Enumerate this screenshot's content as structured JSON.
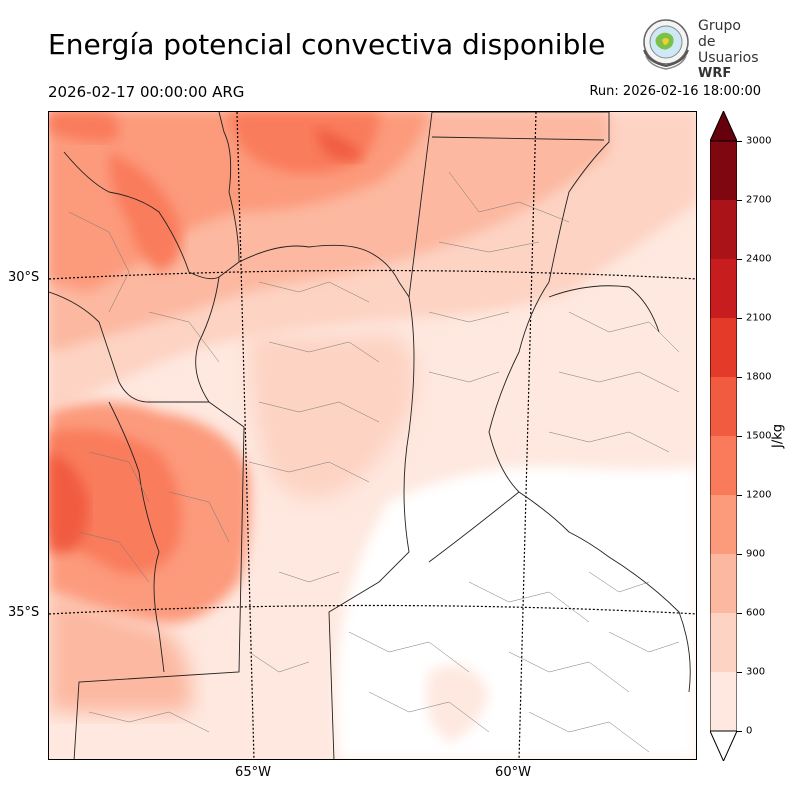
{
  "header": {
    "title": "Energía potencial convectiva disponible",
    "valid_time": "2026-02-17 00:00:00 ARG",
    "run_time": "Run: 2026-02-16 18:00:00"
  },
  "logo": {
    "line1": "Grupo de",
    "line2": "Usuarios",
    "line3": "WRF"
  },
  "map": {
    "variable": "CAPE",
    "lat_labels": [
      "30°S",
      "35°S"
    ],
    "lon_labels": [
      "65°W",
      "60°W"
    ]
  },
  "colorbar": {
    "unit": "J/kg",
    "ticks": [
      "0",
      "300",
      "600",
      "900",
      "1200",
      "1500",
      "1800",
      "2100",
      "2400",
      "2700",
      "3000"
    ],
    "colors": [
      "#fee8df",
      "#fdd3c3",
      "#fcb8a0",
      "#fc9a7c",
      "#f97b5c",
      "#f15b40",
      "#e33a2a",
      "#c81d1f",
      "#aa1318",
      "#7f0710"
    ],
    "over_color": "#67000d",
    "under_color": "#ffffff"
  }
}
